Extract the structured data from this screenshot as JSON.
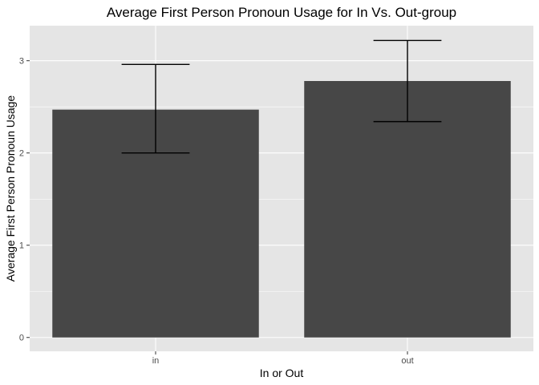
{
  "chart_data": {
    "type": "bar",
    "title": "Average First Person Pronoun Usage for In Vs. Out-group",
    "xlabel": "In or Out",
    "ylabel": "Average First Person Pronoun Usage",
    "categories": [
      "in",
      "out"
    ],
    "values": [
      2.47,
      2.78
    ],
    "error_low": [
      2.0,
      2.34
    ],
    "error_high": [
      2.96,
      3.22
    ],
    "ylim": [
      -0.15,
      3.38
    ],
    "yticks": [
      0,
      1,
      2,
      3
    ],
    "ytick_labels": [
      "0",
      "1",
      "2",
      "3"
    ],
    "grid": true,
    "colors": {
      "bar": "#474747",
      "panel": "#e5e5e5",
      "grid": "#ffffff",
      "errorbar": "#000000"
    }
  }
}
